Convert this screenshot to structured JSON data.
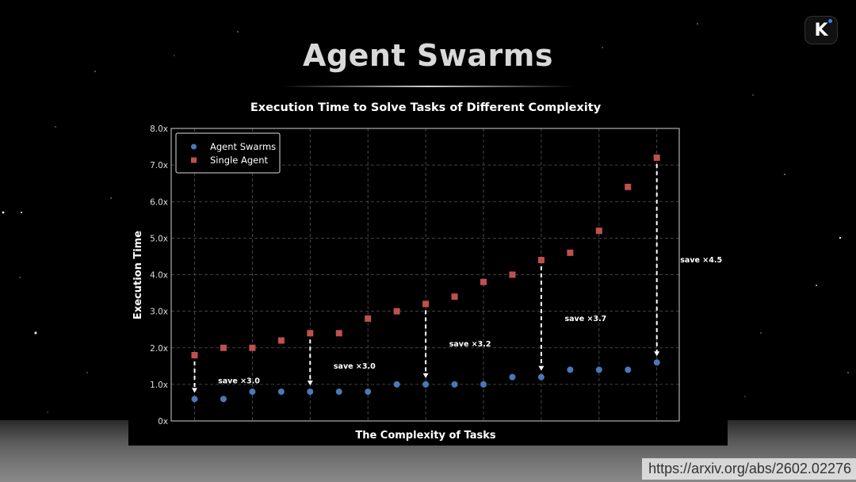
{
  "slide": {
    "title": "Agent Swarms",
    "logo_letter": "K",
    "url": "https://arxiv.org/abs/2602.02276"
  },
  "chart_data": {
    "type": "scatter",
    "title": "Execution Time to Solve Tasks of Different Complexity",
    "xlabel": "The Complexity of Tasks",
    "ylabel": "Execution Time",
    "ylim": [
      0,
      8
    ],
    "yticks": [
      "0x",
      "1.0x",
      "2.0x",
      "3.0x",
      "4.0x",
      "5.0x",
      "6.0x",
      "7.0x",
      "8.0x"
    ],
    "x": [
      1,
      2,
      3,
      4,
      5,
      6,
      7,
      8,
      9,
      10,
      11,
      12,
      13,
      14,
      15,
      16,
      17
    ],
    "grid": true,
    "legend_position": "top-left",
    "series": [
      {
        "name": "Agent Swarms",
        "marker": "circle",
        "color": "#4a78b8",
        "values": [
          0.6,
          0.6,
          0.8,
          0.8,
          0.8,
          0.8,
          0.8,
          1.0,
          1.0,
          1.0,
          1.0,
          1.2,
          1.2,
          1.4,
          1.4,
          1.4,
          1.6
        ]
      },
      {
        "name": "Single Agent",
        "marker": "square",
        "color": "#c0504d",
        "values": [
          1.8,
          2.0,
          2.0,
          2.2,
          2.4,
          2.4,
          2.8,
          3.0,
          3.2,
          3.4,
          3.8,
          4.0,
          4.4,
          4.6,
          5.2,
          6.4,
          7.2
        ]
      }
    ],
    "annotations": [
      {
        "x": 1,
        "from": 1.8,
        "to": 0.6,
        "label": "save ×3.0"
      },
      {
        "x": 5,
        "from": 2.4,
        "to": 0.8,
        "label": "save ×3.0"
      },
      {
        "x": 9,
        "from": 3.2,
        "to": 1.0,
        "label": "save ×3.2"
      },
      {
        "x": 13,
        "from": 4.4,
        "to": 1.2,
        "label": "save ×3.7"
      },
      {
        "x": 17,
        "from": 7.2,
        "to": 1.6,
        "label": "save ×4.5"
      }
    ]
  }
}
